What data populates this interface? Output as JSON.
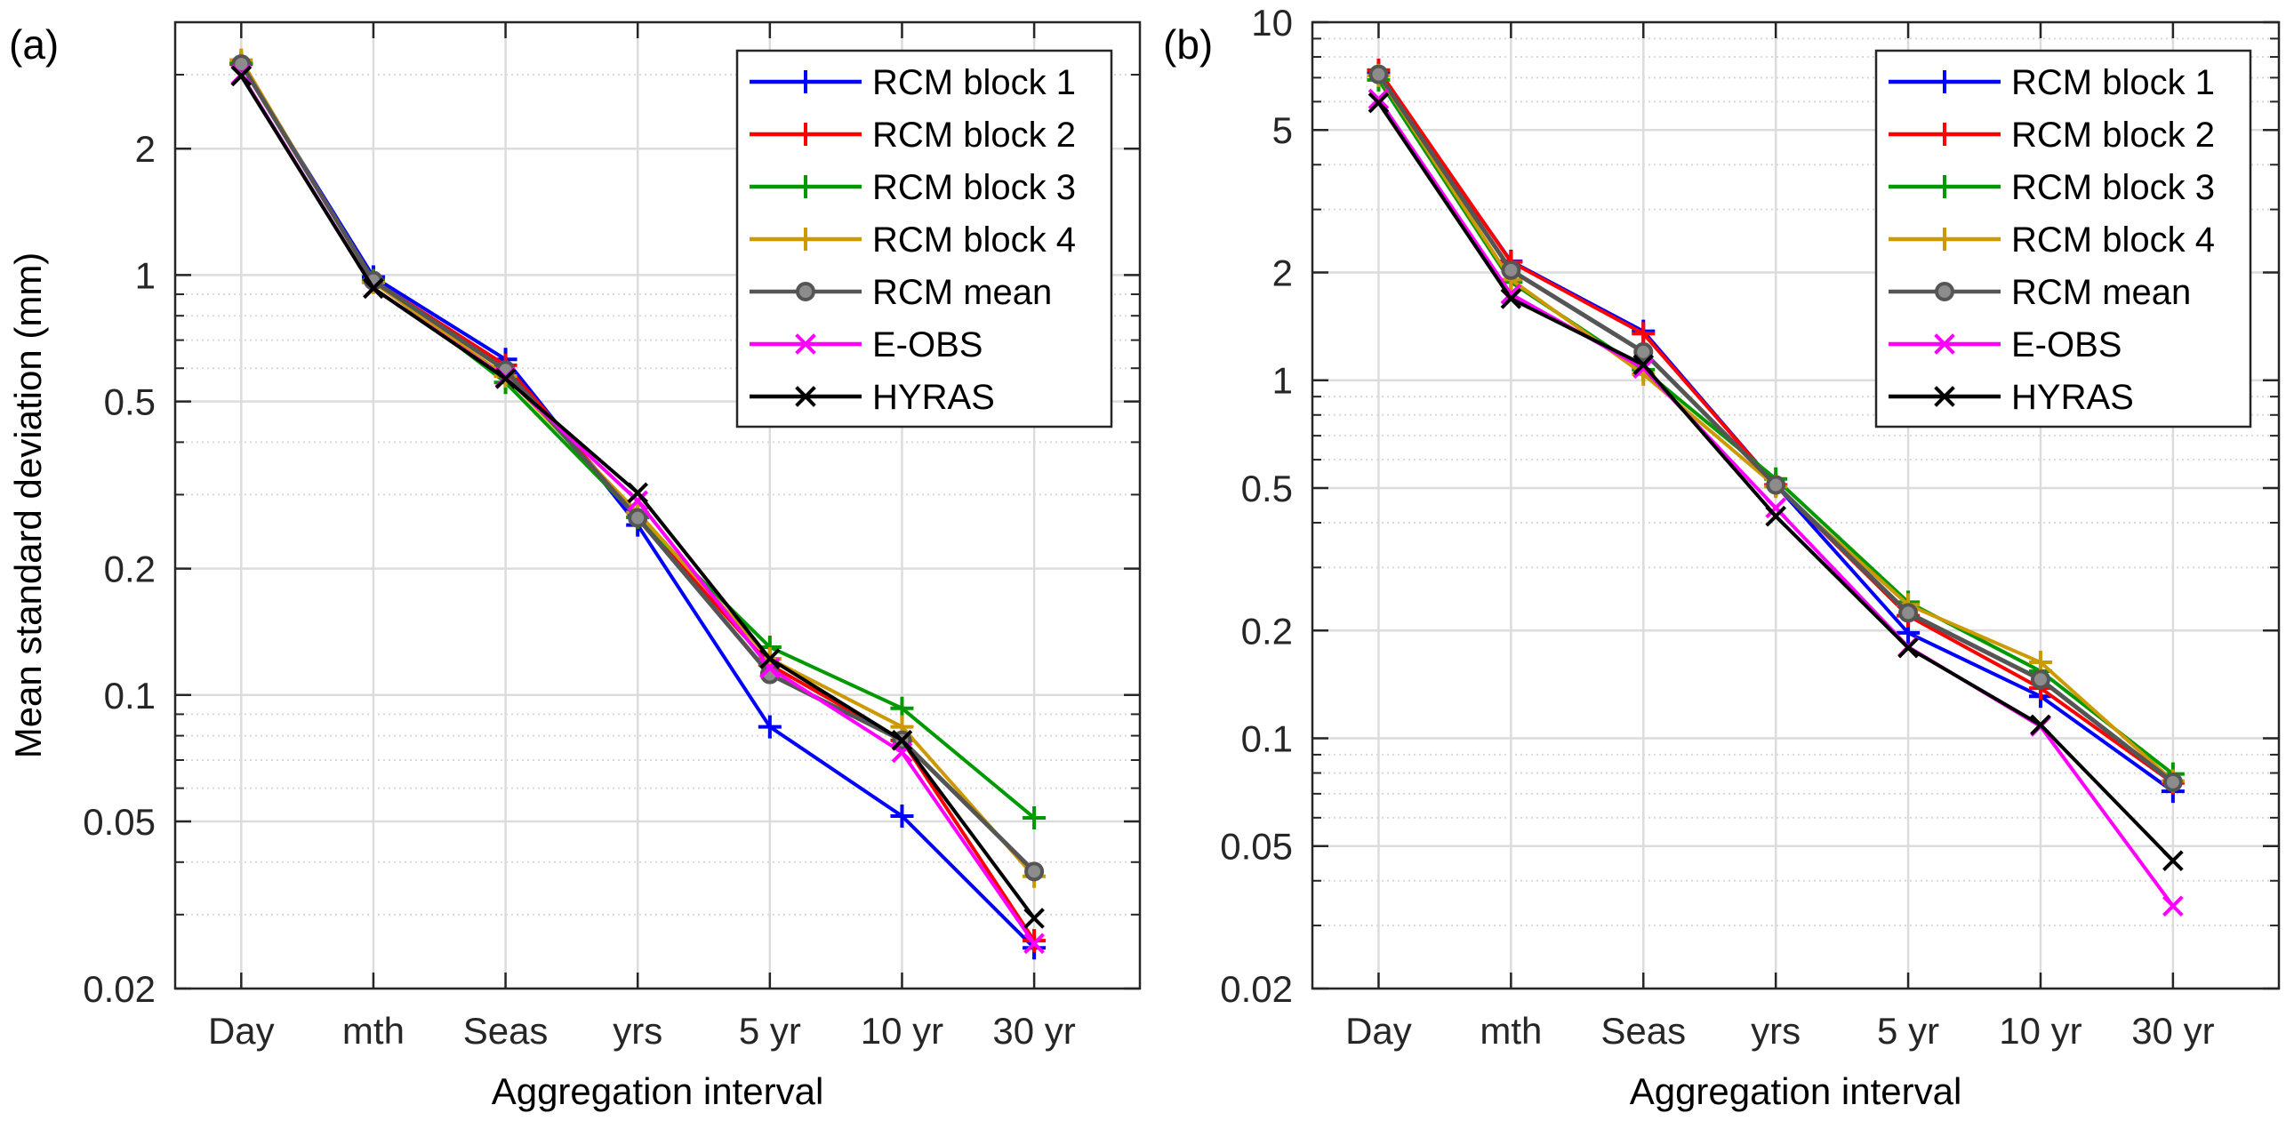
{
  "figure": {
    "panels": [
      "(a)",
      "(b)"
    ]
  },
  "chart_data": [
    {
      "type": "line",
      "panel_label": "(a)",
      "title": "",
      "xlabel": "Aggregation interval",
      "ylabel": "Mean standard deviation (mm)",
      "yscale": "log",
      "ylim": [
        0.02,
        4
      ],
      "yticks": [
        0.02,
        0.05,
        0.1,
        0.2,
        0.5,
        1,
        2
      ],
      "ytick_labels": [
        "0.02",
        "0.05",
        "0.1",
        "0.2",
        "0.5",
        "1",
        "2"
      ],
      "grid": true,
      "legend_position": "top-right",
      "categories": [
        "Day",
        "mth",
        "Seas",
        "yrs",
        "5 yr",
        "10 yr",
        "30 yr"
      ],
      "series": [
        {
          "name": "RCM block 1",
          "color": "#0000ff",
          "marker": "plus",
          "values": [
            3.18,
            0.99,
            0.63,
            0.254,
            0.084,
            0.0515,
            0.025
          ]
        },
        {
          "name": "RCM block 2",
          "color": "#ff0000",
          "marker": "plus",
          "values": [
            3.18,
            0.97,
            0.61,
            0.265,
            0.118,
            0.078,
            0.026
          ]
        },
        {
          "name": "RCM block 3",
          "color": "#009900",
          "marker": "plus",
          "values": [
            3.2,
            0.97,
            0.555,
            0.265,
            0.13,
            0.093,
            0.051
          ]
        },
        {
          "name": "RCM block 4",
          "color": "#cc9900",
          "marker": "plus",
          "values": [
            3.25,
            0.96,
            0.575,
            0.272,
            0.122,
            0.084,
            0.037
          ]
        },
        {
          "name": "RCM mean",
          "color": "#555555",
          "marker": "circle",
          "values": [
            3.18,
            0.97,
            0.594,
            0.264,
            0.112,
            0.078,
            0.038
          ]
        },
        {
          "name": "E-OBS",
          "color": "#ff00ff",
          "marker": "x",
          "values": [
            3.0,
            0.93,
            0.57,
            0.29,
            0.116,
            0.073,
            0.0256
          ]
        },
        {
          "name": "HYRAS",
          "color": "#000000",
          "marker": "x",
          "values": [
            2.98,
            0.93,
            0.567,
            0.303,
            0.122,
            0.078,
            0.0294
          ]
        }
      ]
    },
    {
      "type": "line",
      "panel_label": "(b)",
      "title": "",
      "xlabel": "Aggregation interval",
      "ylabel": "",
      "yscale": "log",
      "ylim": [
        0.02,
        10
      ],
      "yticks": [
        0.02,
        0.05,
        0.1,
        0.2,
        0.5,
        1,
        2,
        5,
        10
      ],
      "ytick_labels": [
        "0.02",
        "0.05",
        "0.1",
        "0.2",
        "0.5",
        "1",
        "2",
        "5",
        "10"
      ],
      "grid": true,
      "legend_position": "top-right",
      "categories": [
        "Day",
        "mth",
        "Seas",
        "yrs",
        "5 yr",
        "10 yr",
        "30 yr"
      ],
      "series": [
        {
          "name": "RCM block 1",
          "color": "#0000ff",
          "marker": "plus",
          "values": [
            7.2,
            2.15,
            1.37,
            0.51,
            0.197,
            0.131,
            0.0711
          ]
        },
        {
          "name": "RCM block 2",
          "color": "#ff0000",
          "marker": "plus",
          "values": [
            7.35,
            2.14,
            1.35,
            0.51,
            0.22,
            0.138,
            0.075
          ]
        },
        {
          "name": "RCM block 3",
          "color": "#009900",
          "marker": "plus",
          "values": [
            6.9,
            1.88,
            1.07,
            0.53,
            0.24,
            0.154,
            0.0795
          ]
        },
        {
          "name": "RCM block 4",
          "color": "#cc9900",
          "marker": "plus",
          "values": [
            7.1,
            1.91,
            1.04,
            0.505,
            0.236,
            0.163,
            0.076
          ]
        },
        {
          "name": "RCM mean",
          "color": "#555555",
          "marker": "circle",
          "values": [
            7.15,
            2.03,
            1.2,
            0.51,
            0.224,
            0.146,
            0.0754
          ]
        },
        {
          "name": "E-OBS",
          "color": "#ff00ff",
          "marker": "x",
          "values": [
            6.1,
            1.74,
            1.08,
            0.44,
            0.18,
            0.108,
            0.034
          ]
        },
        {
          "name": "HYRAS",
          "color": "#000000",
          "marker": "x",
          "values": [
            5.96,
            1.69,
            1.105,
            0.417,
            0.179,
            0.109,
            0.0455
          ]
        }
      ]
    }
  ]
}
